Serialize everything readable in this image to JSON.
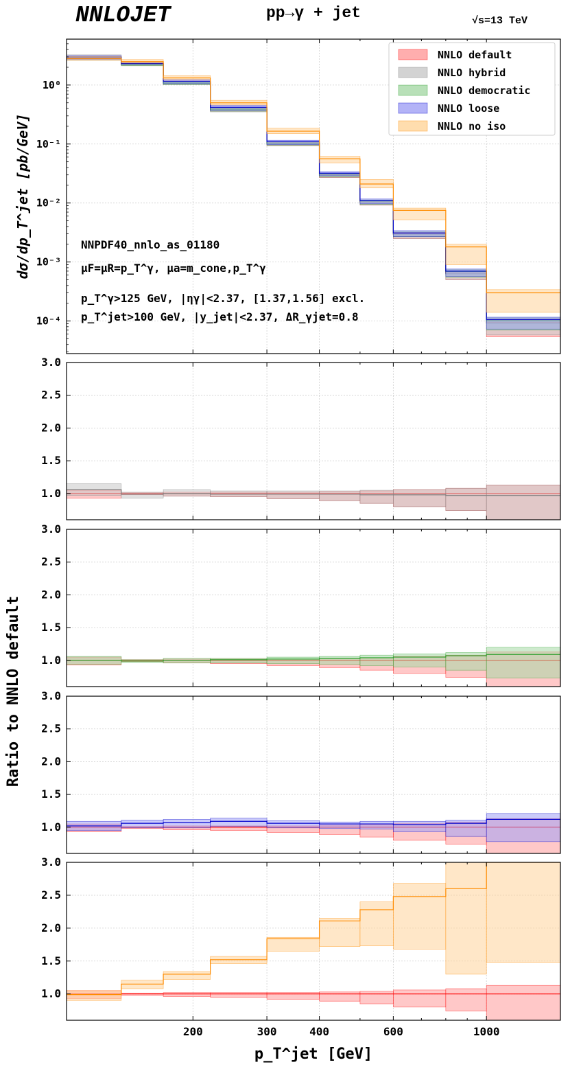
{
  "header": {
    "brand": "NNLOJET",
    "process": "pp→γ + jet",
    "energy_sqrt": "√s",
    "energy_value": "=13 TeV"
  },
  "chart_data": [
    {
      "type": "line",
      "panel": "main",
      "title": "",
      "xlabel": "",
      "ylabel": "dσ/dp_T^jet [pb/GeV]",
      "yscale": "log",
      "ylim": [
        2.8e-05,
        6
      ],
      "ytick_labels": [
        "10⁻⁴",
        "10⁻³",
        "10⁻²",
        "10⁻¹",
        "10⁰"
      ],
      "legend_position": "top-right",
      "grid": true,
      "annotations": [
        "NNPDF40_nnlo_as_01180",
        "μF=μR=p_T^γ, μa=m_cone,p_T^γ",
        "p_T^γ>125 GeV, |ηγ|<2.37, [1.37,1.56] excl.",
        "p_T^jet>100 GeV, |y_jet|<2.37, ΔR_γjet=0.8"
      ],
      "series": [
        {
          "name": "NNLO default",
          "color": "#ff0000",
          "fill": "#ff9a9a",
          "central": [
            2.85,
            2.3,
            1.1,
            0.39,
            0.102,
            0.03,
            0.0105,
            0.003,
            0.00065,
            9.5e-05
          ],
          "low": [
            2.65,
            2.15,
            1.02,
            0.36,
            0.094,
            0.027,
            0.0092,
            0.0025,
            0.0005,
            5.4e-05
          ],
          "high": [
            3.05,
            2.4,
            1.15,
            0.41,
            0.107,
            0.031,
            0.0109,
            0.0032,
            0.0007,
            0.000108
          ]
        },
        {
          "name": "NNLO hybrid",
          "color": "#7f7f7f",
          "fill": "#c8c8c8",
          "central": [
            3.0,
            2.27,
            1.09,
            0.38,
            0.1,
            0.029,
            0.0102,
            0.0029,
            0.00063,
            9.2e-05
          ],
          "low": [
            2.75,
            2.15,
            1.02,
            0.35,
            0.093,
            0.027,
            0.0092,
            0.0025,
            0.0005,
            5.8e-05
          ],
          "high": [
            3.25,
            2.4,
            1.15,
            0.4,
            0.105,
            0.03,
            0.0106,
            0.0031,
            0.00068,
            0.000103
          ]
        },
        {
          "name": "NNLO democratic",
          "color": "#2ca02c",
          "fill": "#a6d8a6",
          "central": [
            2.82,
            2.25,
            1.08,
            0.39,
            0.104,
            0.031,
            0.0108,
            0.0031,
            0.00069,
            0.000101
          ],
          "low": [
            2.65,
            2.12,
            1.01,
            0.36,
            0.096,
            0.028,
            0.0095,
            0.0027,
            0.00055,
            7e-05
          ],
          "high": [
            3.0,
            2.38,
            1.14,
            0.41,
            0.109,
            0.032,
            0.0113,
            0.0033,
            0.00074,
            0.000113
          ]
        },
        {
          "name": "NNLO loose",
          "color": "#0000cc",
          "fill": "#a0a0f5",
          "central": [
            2.9,
            2.32,
            1.16,
            0.42,
            0.11,
            0.032,
            0.011,
            0.0031,
            0.0007,
            0.000106
          ],
          "low": [
            2.7,
            2.2,
            1.05,
            0.37,
            0.098,
            0.029,
            0.0097,
            0.0027,
            0.00057,
            7.3e-05
          ],
          "high": [
            3.15,
            2.45,
            1.25,
            0.45,
            0.116,
            0.034,
            0.0117,
            0.0034,
            0.00076,
            0.000116
          ]
        },
        {
          "name": "NNLO no iso",
          "color": "#ff8c00",
          "fill": "#ffd49a",
          "central": [
            2.8,
            2.5,
            1.32,
            0.5,
            0.165,
            0.056,
            0.021,
            0.0075,
            0.0018,
            0.0003
          ],
          "low": [
            2.65,
            2.35,
            1.22,
            0.46,
            0.15,
            0.048,
            0.018,
            0.0052,
            0.0009,
            0.00014
          ],
          "high": [
            3.0,
            2.7,
            1.45,
            0.55,
            0.185,
            0.062,
            0.025,
            0.0082,
            0.002,
            0.00034
          ]
        }
      ]
    },
    {
      "type": "line",
      "panel": "ratio",
      "title": "",
      "xlabel": "",
      "ylabel": "",
      "ylim": [
        0.6,
        3.0
      ],
      "yticks": [
        1.0,
        1.5,
        2.0,
        2.5,
        3.0
      ],
      "ytick_labels": [
        "1.0",
        "1.5",
        "2.0",
        "2.5",
        "3.0"
      ],
      "series": [
        {
          "name": "NNLO default",
          "color": "#ff0000",
          "fill": "#ff9a9a",
          "central": [
            1,
            1,
            1,
            1,
            1,
            1,
            1,
            1,
            1,
            1
          ],
          "low": [
            0.93,
            0.98,
            0.96,
            0.95,
            0.92,
            0.89,
            0.85,
            0.8,
            0.74,
            0.59
          ],
          "high": [
            1.05,
            1.01,
            1.02,
            1.02,
            1.02,
            1.03,
            1.04,
            1.06,
            1.08,
            1.13
          ]
        },
        {
          "name": "NNLO hybrid",
          "color": "#7f7f7f",
          "fill": "#c8c8c8",
          "central": [
            1.06,
            0.99,
            1.0,
            0.99,
            0.99,
            0.99,
            0.98,
            0.98,
            0.97,
            0.97
          ],
          "low": [
            0.97,
            0.93,
            0.96,
            0.95,
            0.92,
            0.89,
            0.85,
            0.8,
            0.74,
            0.59
          ],
          "high": [
            1.15,
            1.02,
            1.06,
            1.04,
            1.04,
            1.04,
            1.05,
            1.06,
            1.08,
            1.13
          ]
        }
      ]
    },
    {
      "type": "line",
      "panel": "ratio",
      "title": "",
      "xlabel": "",
      "ylabel": "",
      "ylim": [
        0.6,
        3.0
      ],
      "yticks": [
        1.0,
        1.5,
        2.0,
        2.5,
        3.0
      ],
      "ytick_labels": [
        "1.0",
        "1.5",
        "2.0",
        "2.5",
        "3.0"
      ],
      "series": [
        {
          "name": "NNLO default",
          "color": "#ff0000",
          "fill": "#ff9a9a",
          "central": [
            1,
            1,
            1,
            1,
            1,
            1,
            1,
            1,
            1,
            1
          ],
          "low": [
            0.93,
            0.98,
            0.96,
            0.95,
            0.92,
            0.89,
            0.85,
            0.8,
            0.74,
            0.59
          ],
          "high": [
            1.05,
            1.01,
            1.02,
            1.02,
            1.02,
            1.03,
            1.04,
            1.06,
            1.08,
            1.13
          ]
        },
        {
          "name": "NNLO democratic",
          "color": "#2ca02c",
          "fill": "#a6d8a6",
          "central": [
            1.0,
            0.99,
            1.0,
            1.01,
            1.02,
            1.03,
            1.04,
            1.05,
            1.07,
            1.09
          ],
          "low": [
            0.94,
            0.97,
            0.96,
            0.96,
            0.95,
            0.94,
            0.92,
            0.9,
            0.85,
            0.73
          ],
          "high": [
            1.06,
            1.01,
            1.03,
            1.03,
            1.05,
            1.06,
            1.08,
            1.1,
            1.12,
            1.2
          ]
        }
      ]
    },
    {
      "type": "line",
      "panel": "ratio",
      "title": "",
      "xlabel": "",
      "ylabel": "Ratio to NNLO default",
      "ylim": [
        0.6,
        3.0
      ],
      "yticks": [
        1.0,
        1.5,
        2.0,
        2.5,
        3.0
      ],
      "ytick_labels": [
        "1.0",
        "1.5",
        "2.0",
        "2.5",
        "3.0"
      ],
      "series": [
        {
          "name": "NNLO default",
          "color": "#ff0000",
          "fill": "#ff9a9a",
          "central": [
            1,
            1,
            1,
            1,
            1,
            1,
            1,
            1,
            1,
            1
          ],
          "low": [
            0.93,
            0.98,
            0.96,
            0.95,
            0.92,
            0.89,
            0.85,
            0.8,
            0.74,
            0.59
          ],
          "high": [
            1.05,
            1.01,
            1.02,
            1.02,
            1.02,
            1.03,
            1.04,
            1.06,
            1.08,
            1.13
          ]
        },
        {
          "name": "NNLO loose",
          "color": "#0000cc",
          "fill": "#a0a0f5",
          "central": [
            1.02,
            1.06,
            1.07,
            1.09,
            1.06,
            1.05,
            1.05,
            1.04,
            1.06,
            1.12
          ],
          "low": [
            0.95,
            0.99,
            0.99,
            1.01,
            0.99,
            0.98,
            0.97,
            0.93,
            0.86,
            0.78
          ],
          "high": [
            1.09,
            1.11,
            1.12,
            1.14,
            1.1,
            1.08,
            1.09,
            1.09,
            1.11,
            1.21
          ]
        }
      ]
    },
    {
      "type": "line",
      "panel": "ratio",
      "title": "",
      "xlabel": "p_T^jet [GeV]",
      "ylabel": "",
      "ylim": [
        0.6,
        3.0
      ],
      "yticks": [
        1.0,
        1.5,
        2.0,
        2.5,
        3.0
      ],
      "ytick_labels": [
        "1.0",
        "1.5",
        "2.0",
        "2.5",
        "3.0"
      ],
      "x_bin_edges": [
        100,
        135,
        170,
        220,
        300,
        400,
        500,
        600,
        800,
        1000,
        1500
      ],
      "xticks": [
        200,
        300,
        400,
        600,
        1000
      ],
      "xtick_labels": [
        "200",
        "300",
        "400",
        "600",
        "1000"
      ],
      "series": [
        {
          "name": "NNLO default",
          "color": "#ff0000",
          "fill": "#ff9a9a",
          "central": [
            1,
            1,
            1,
            1,
            1,
            1,
            1,
            1,
            1,
            1
          ],
          "low": [
            0.93,
            0.98,
            0.96,
            0.95,
            0.92,
            0.89,
            0.85,
            0.8,
            0.74,
            0.59
          ],
          "high": [
            1.05,
            1.01,
            1.02,
            1.02,
            1.02,
            1.03,
            1.04,
            1.06,
            1.08,
            1.13
          ]
        },
        {
          "name": "NNLO no iso",
          "color": "#ff8c00",
          "fill": "#ffd49a",
          "central": [
            0.99,
            1.15,
            1.3,
            1.52,
            1.84,
            2.11,
            2.28,
            2.48,
            2.6,
            3.0
          ],
          "low": [
            0.9,
            1.08,
            1.22,
            1.46,
            1.65,
            1.72,
            1.73,
            1.68,
            1.3,
            1.48
          ],
          "high": [
            1.05,
            1.21,
            1.34,
            1.57,
            1.86,
            2.15,
            2.4,
            2.68,
            3.0,
            3.0
          ]
        }
      ]
    }
  ]
}
